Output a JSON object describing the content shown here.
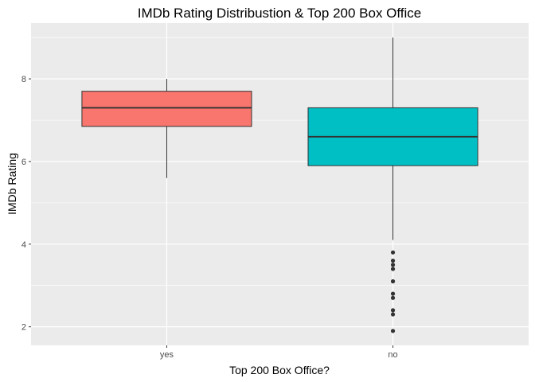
{
  "chart_data": {
    "type": "boxplot",
    "title": "IMDb Rating Distribustion & Top 200 Box Office",
    "xlabel": "Top 200 Box Office?",
    "ylabel": "IMDb Rating",
    "ylim": [
      1.55,
      9.35
    ],
    "yticks": [
      2,
      4,
      6,
      8
    ],
    "grid": true,
    "legend": "none",
    "categories": [
      "yes",
      "no"
    ],
    "boxes": [
      {
        "category": "yes",
        "color": "#F8766D",
        "min": 5.6,
        "q1": 6.85,
        "median": 7.3,
        "q3": 7.7,
        "max": 8.0,
        "outliers": []
      },
      {
        "category": "no",
        "color": "#00BFC4",
        "min": 4.1,
        "q1": 5.9,
        "median": 6.6,
        "q3": 7.3,
        "max": 9.0,
        "outliers": [
          3.8,
          3.6,
          3.5,
          3.4,
          3.1,
          2.8,
          2.7,
          2.4,
          2.3,
          1.9
        ]
      }
    ]
  }
}
